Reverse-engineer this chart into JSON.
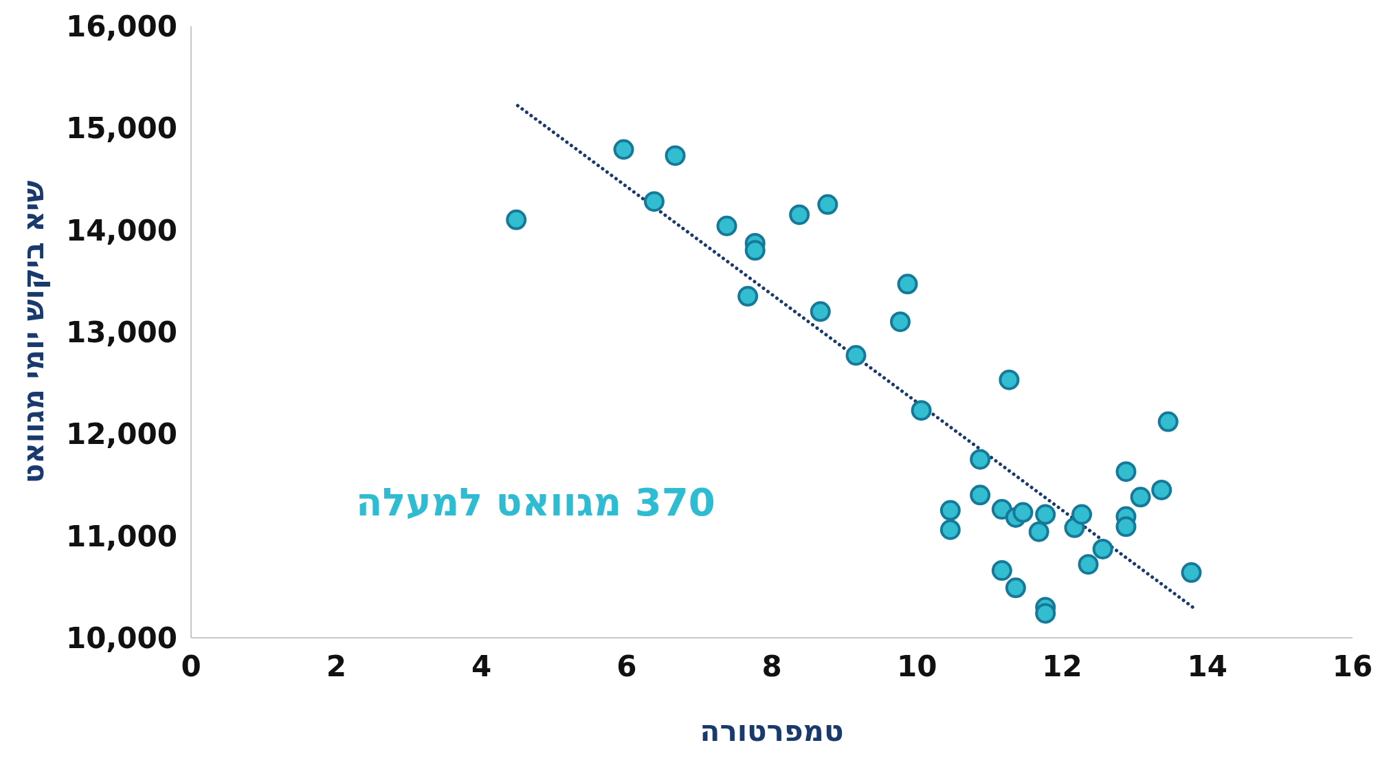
{
  "chart_data": {
    "type": "scatter",
    "xlabel": "טמפרטורה",
    "ylabel": "שיא ביקוש יומי מגוואט",
    "annotations": [
      "370 מגוואט למעלה"
    ],
    "xlim": [
      0,
      16
    ],
    "xticks": [
      0,
      2,
      4,
      6,
      8,
      10,
      12,
      14,
      16
    ],
    "ylim": [
      10000,
      16000
    ],
    "yticks": [
      {
        "value": 10000,
        "label": "10,000"
      },
      {
        "value": 11000,
        "label": "11,000"
      },
      {
        "value": 12000,
        "label": "12,000"
      },
      {
        "value": 13000,
        "label": "13,000"
      },
      {
        "value": 14000,
        "label": "14,000"
      },
      {
        "value": 15000,
        "label": "15,000"
      },
      {
        "value": 16000,
        "label": "16,000"
      }
    ],
    "series": [
      {
        "color": "#33bdd1",
        "marker": "circle",
        "x": [
          4.48,
          5.96,
          6.67,
          6.38,
          7.38,
          7.77,
          7.77,
          7.67,
          8.38,
          8.77,
          8.67,
          9.16,
          9.77,
          9.87,
          10.06,
          10.46,
          10.46,
          10.87,
          10.87,
          11.17,
          11.17,
          11.27,
          11.36,
          11.46,
          11.36,
          11.68,
          11.77,
          11.77,
          11.77,
          12.17,
          12.27,
          12.36,
          12.56,
          12.88,
          12.88,
          12.88,
          13.08,
          13.37,
          13.46,
          13.78
        ],
        "values": [
          14100,
          14790,
          14730,
          14280,
          14040,
          13870,
          13800,
          13350,
          14150,
          14250,
          13200,
          12770,
          13100,
          13470,
          12230,
          11250,
          11060,
          11750,
          11400,
          11260,
          10660,
          12530,
          11180,
          11230,
          10490,
          11040,
          11210,
          10300,
          10240,
          11080,
          11210,
          10720,
          10870,
          11630,
          11190,
          11090,
          11380,
          11450,
          12120,
          10640
        ]
      },
      {
        "type": "line",
        "color": "#1a3a6e",
        "marker": "none",
        "line_style": "dotted",
        "x": [
          4.5,
          13.8
        ],
        "values": [
          15220,
          10300
        ]
      }
    ]
  }
}
